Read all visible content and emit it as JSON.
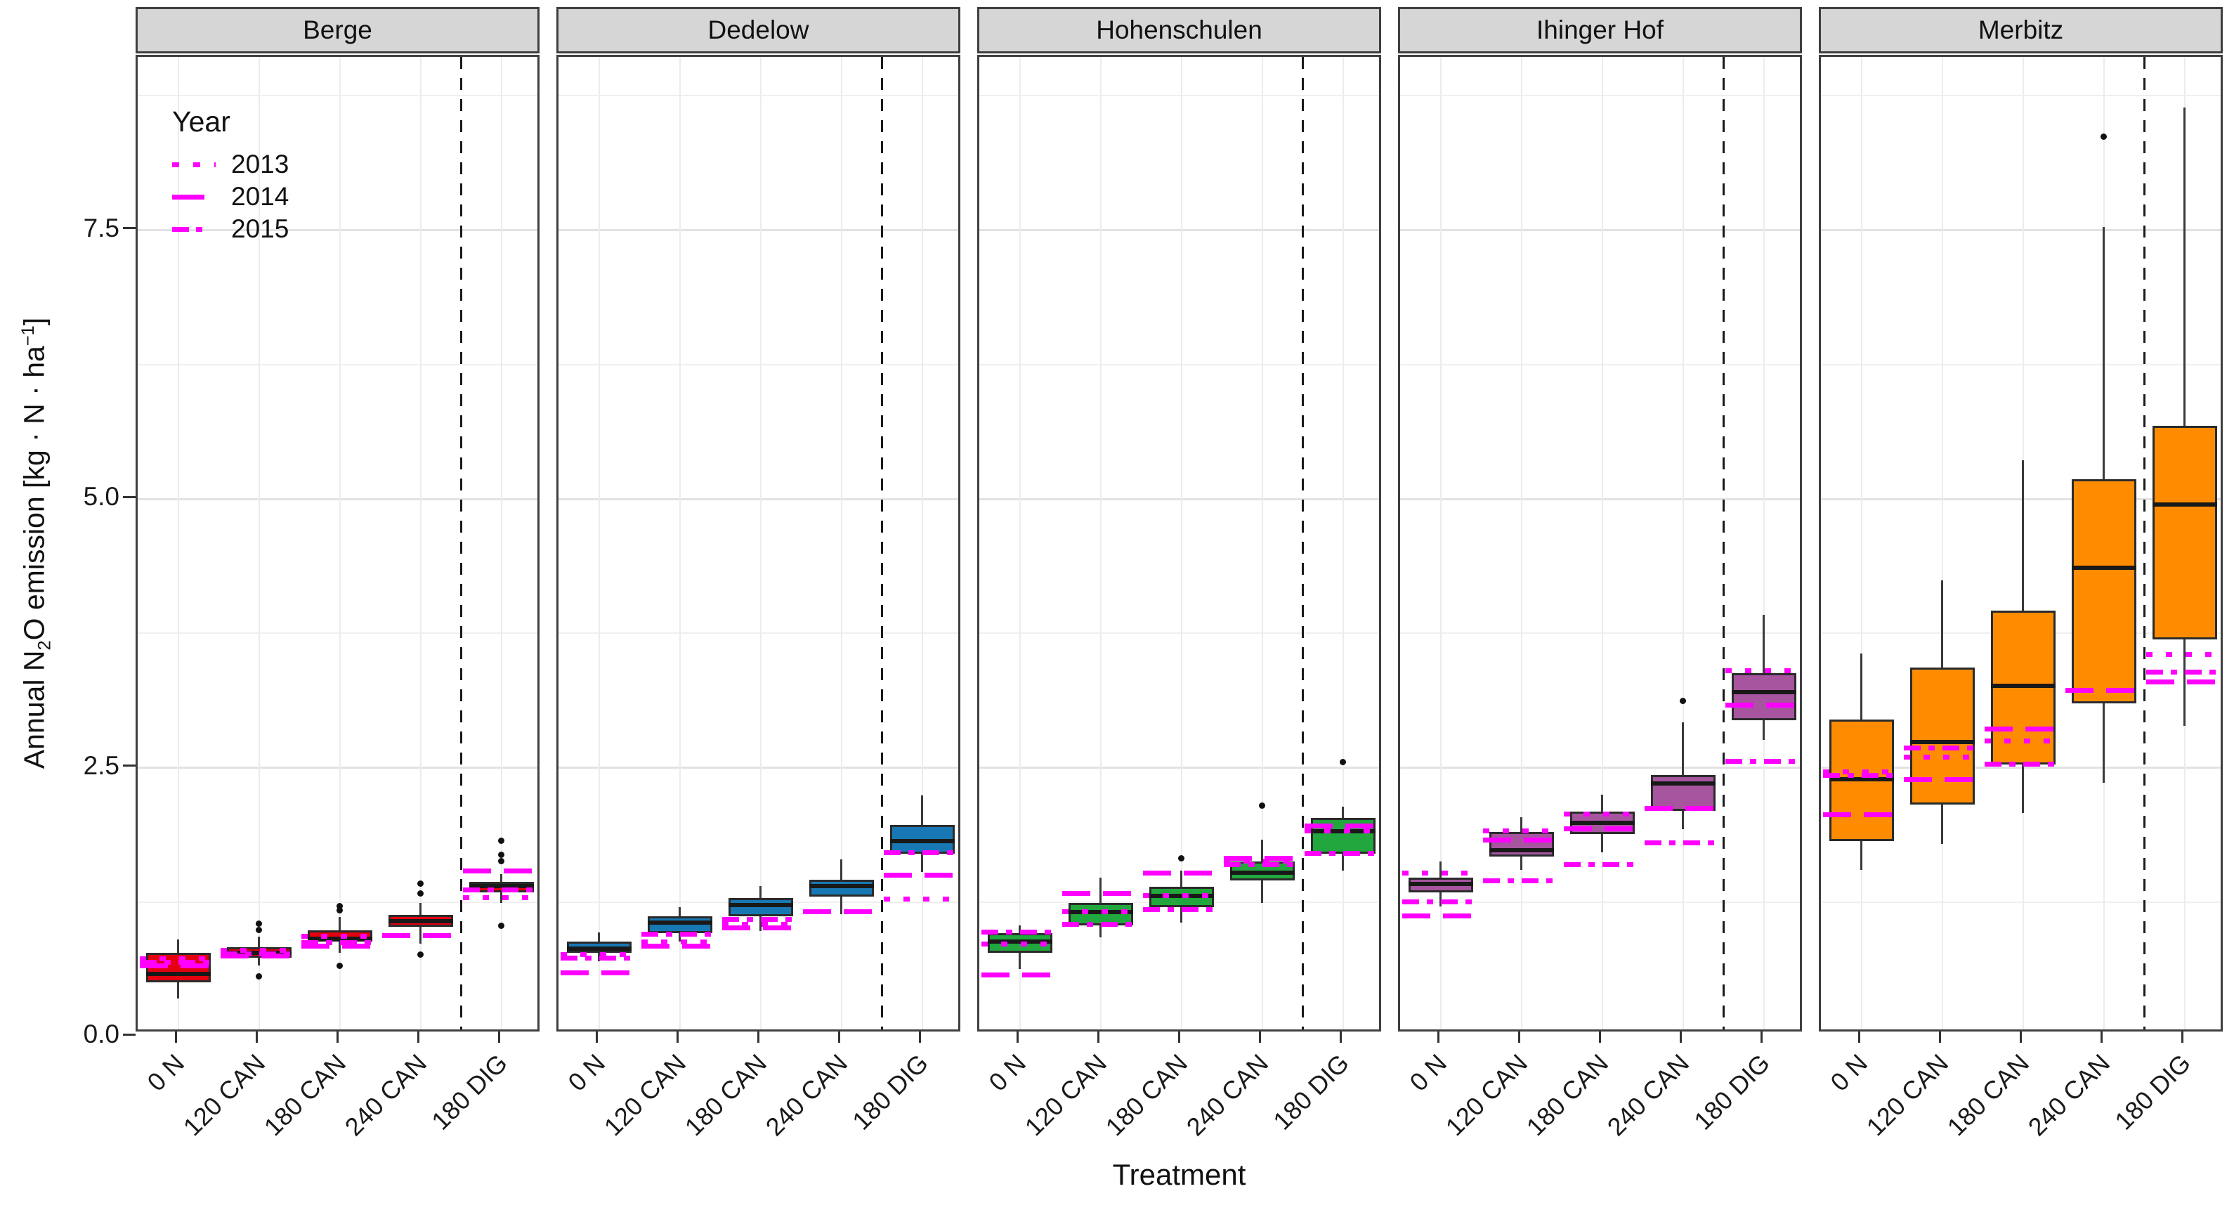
{
  "y_axis": {
    "title_parts": {
      "pre": "Annual N",
      "sub": "2",
      "mid": "O emission [kg · N · ha",
      "sup": "−1",
      "post": "]"
    },
    "ticks": [
      {
        "value": 0.0,
        "label": "0.0"
      },
      {
        "value": 2.5,
        "label": "2.5"
      },
      {
        "value": 5.0,
        "label": "5.0"
      },
      {
        "value": 7.5,
        "label": "7.5"
      }
    ],
    "minor_ticks": [
      1.25,
      3.75,
      6.25,
      8.75
    ]
  },
  "x_axis": {
    "title": "Treatment"
  },
  "legend": {
    "title": "Year",
    "color": "#ff00ff",
    "items": [
      {
        "label": "2013",
        "style": "dotted"
      },
      {
        "label": "2014",
        "style": "long-dash"
      },
      {
        "label": "2015",
        "style": "dash-dot"
      }
    ]
  },
  "chart_data": {
    "type": "boxplot",
    "categories": [
      "0 N",
      "120 CAN",
      "180 CAN",
      "240 CAN",
      "180 DIG"
    ],
    "ylim": [
      0,
      9.1
    ],
    "grid": true,
    "legend_position": "top-left-inside-first-panel",
    "separator_after_category": "240 CAN",
    "year_line_color": "#ff00ff",
    "facets": [
      {
        "name": "Berge",
        "color": "#e4000f",
        "boxes": [
          {
            "treatment": "0 N",
            "low": 0.35,
            "q1": 0.5,
            "median": 0.58,
            "q3": 0.78,
            "high": 0.9,
            "outliers": [],
            "years": {
              "2013": 0.72,
              "2014": 0.66,
              "2015": 0.69
            }
          },
          {
            "treatment": "120 CAN",
            "low": 0.66,
            "q1": 0.73,
            "median": 0.78,
            "q3": 0.83,
            "high": 0.93,
            "outliers": [
              1.05,
              0.99,
              0.56
            ],
            "years": {
              "2013": 0.8,
              "2014": 0.75,
              "2015": 0.77
            }
          },
          {
            "treatment": "180 CAN",
            "low": 0.78,
            "q1": 0.88,
            "median": 0.91,
            "q3": 0.99,
            "high": 1.11,
            "outliers": [
              1.21,
              1.17,
              0.66
            ],
            "years": {
              "2013": 0.93,
              "2014": 0.84,
              "2015": 0.87
            }
          },
          {
            "treatment": "240 CAN",
            "low": 0.86,
            "q1": 1.02,
            "median": 1.07,
            "q3": 1.13,
            "high": 1.24,
            "outliers": [
              1.42,
              1.33,
              0.76
            ],
            "years": {
              "2013": null,
              "2014": 0.94,
              "2015": null
            }
          },
          {
            "treatment": "180 DIG",
            "low": 1.24,
            "q1": 1.34,
            "median": 1.4,
            "q3": 1.44,
            "high": 1.51,
            "outliers": [
              1.82,
              1.69,
              1.63,
              1.03
            ],
            "years": {
              "2013": 1.29,
              "2014": 1.54,
              "2015": 1.36
            }
          }
        ]
      },
      {
        "name": "Dedelow",
        "color": "#1878b4",
        "boxes": [
          {
            "treatment": "0 N",
            "low": 0.7,
            "q1": 0.78,
            "median": 0.82,
            "q3": 0.88,
            "high": 0.97,
            "outliers": [],
            "years": {
              "2013": 0.76,
              "2014": 0.59,
              "2015": 0.73
            }
          },
          {
            "treatment": "120 CAN",
            "low": 0.88,
            "q1": 0.96,
            "median": 1.06,
            "q3": 1.12,
            "high": 1.2,
            "outliers": [],
            "years": {
              "2013": 0.88,
              "2014": 0.84,
              "2015": 0.95
            }
          },
          {
            "treatment": "180 CAN",
            "low": 0.98,
            "q1": 1.12,
            "median": 1.22,
            "q3": 1.29,
            "high": 1.4,
            "outliers": [],
            "years": {
              "2013": 1.04,
              "2014": 1.01,
              "2015": 1.09
            }
          },
          {
            "treatment": "240 CAN",
            "low": 1.14,
            "q1": 1.3,
            "median": 1.4,
            "q3": 1.46,
            "high": 1.65,
            "outliers": [],
            "years": {
              "2013": null,
              "2014": 1.16,
              "2015": null
            }
          },
          {
            "treatment": "180 DIG",
            "low": 1.53,
            "q1": 1.7,
            "median": 1.82,
            "q3": 1.97,
            "high": 2.24,
            "outliers": [],
            "years": {
              "2013": 1.28,
              "2014": 1.5,
              "2015": 1.71
            }
          }
        ]
      },
      {
        "name": "Hohenschulen",
        "color": "#21a73d",
        "boxes": [
          {
            "treatment": "0 N",
            "low": 0.63,
            "q1": 0.78,
            "median": 0.88,
            "q3": 0.96,
            "high": 1.03,
            "outliers": [],
            "years": {
              "2013": 0.86,
              "2014": 0.57,
              "2015": 0.97
            }
          },
          {
            "treatment": "120 CAN",
            "low": 0.92,
            "q1": 1.03,
            "median": 1.16,
            "q3": 1.24,
            "high": 1.48,
            "outliers": [],
            "years": {
              "2013": 1.16,
              "2014": 1.33,
              "2015": 1.04
            }
          },
          {
            "treatment": "180 CAN",
            "low": 1.06,
            "q1": 1.2,
            "median": 1.31,
            "q3": 1.39,
            "high": 1.54,
            "outliers": [
              1.66
            ],
            "years": {
              "2013": 1.31,
              "2014": 1.52,
              "2015": 1.18
            }
          },
          {
            "treatment": "240 CAN",
            "low": 1.24,
            "q1": 1.45,
            "median": 1.52,
            "q3": 1.63,
            "high": 1.83,
            "outliers": [
              2.15
            ],
            "years": {
              "2013": 1.63,
              "2014": 1.66,
              "2015": 1.6
            }
          },
          {
            "treatment": "180 DIG",
            "low": 1.54,
            "q1": 1.7,
            "median": 1.91,
            "q3": 2.03,
            "high": 2.14,
            "outliers": [
              2.55
            ],
            "years": {
              "2013": 1.91,
              "2014": 1.96,
              "2015": 1.7
            }
          }
        ]
      },
      {
        "name": "Ihinger Hof",
        "color": "#a855a0",
        "boxes": [
          {
            "treatment": "0 N",
            "low": 1.21,
            "q1": 1.34,
            "median": 1.42,
            "q3": 1.48,
            "high": 1.63,
            "outliers": [],
            "years": {
              "2013": 1.52,
              "2014": 1.12,
              "2015": 1.25
            }
          },
          {
            "treatment": "120 CAN",
            "low": 1.55,
            "q1": 1.67,
            "median": 1.73,
            "q3": 1.9,
            "high": 2.04,
            "outliers": [],
            "years": {
              "2013": 1.91,
              "2014": 1.83,
              "2015": 1.45
            }
          },
          {
            "treatment": "180 CAN",
            "low": 1.71,
            "q1": 1.88,
            "median": 1.99,
            "q3": 2.09,
            "high": 2.25,
            "outliers": [],
            "years": {
              "2013": 2.07,
              "2014": 1.93,
              "2015": 1.6
            }
          },
          {
            "treatment": "240 CAN",
            "low": 1.93,
            "q1": 2.1,
            "median": 2.35,
            "q3": 2.43,
            "high": 2.92,
            "outliers": [
              3.12
            ],
            "years": {
              "2013": null,
              "2014": 2.12,
              "2015": 1.8
            }
          },
          {
            "treatment": "180 DIG",
            "low": 2.76,
            "q1": 2.94,
            "median": 3.2,
            "q3": 3.38,
            "high": 3.92,
            "outliers": [],
            "years": {
              "2013": 3.4,
              "2014": 3.08,
              "2015": 2.56
            }
          }
        ]
      },
      {
        "name": "Merbitz",
        "color": "#ff8c00",
        "boxes": [
          {
            "treatment": "0 N",
            "low": 1.55,
            "q1": 1.82,
            "median": 2.39,
            "q3": 2.95,
            "high": 3.56,
            "outliers": [],
            "years": {
              "2013": 2.46,
              "2014": 2.06,
              "2015": 2.43
            }
          },
          {
            "treatment": "120 CAN",
            "low": 1.79,
            "q1": 2.16,
            "median": 2.74,
            "q3": 3.43,
            "high": 4.24,
            "outliers": [],
            "years": {
              "2013": 2.6,
              "2014": 2.39,
              "2015": 2.68
            }
          },
          {
            "treatment": "180 CAN",
            "low": 2.08,
            "q1": 2.53,
            "median": 3.26,
            "q3": 3.96,
            "high": 5.36,
            "outliers": [],
            "years": {
              "2013": 2.75,
              "2014": 2.86,
              "2015": 2.53
            }
          },
          {
            "treatment": "240 CAN",
            "low": 2.36,
            "q1": 3.1,
            "median": 4.36,
            "q3": 5.18,
            "high": 7.53,
            "outliers": [
              8.37
            ],
            "years": {
              "2013": null,
              "2014": 3.22,
              "2015": null
            }
          },
          {
            "treatment": "180 DIG",
            "low": 2.89,
            "q1": 3.69,
            "median": 4.95,
            "q3": 5.68,
            "high": 8.64,
            "outliers": [],
            "years": {
              "2013": 3.55,
              "2014": 3.3,
              "2015": 3.39
            }
          }
        ]
      }
    ]
  }
}
